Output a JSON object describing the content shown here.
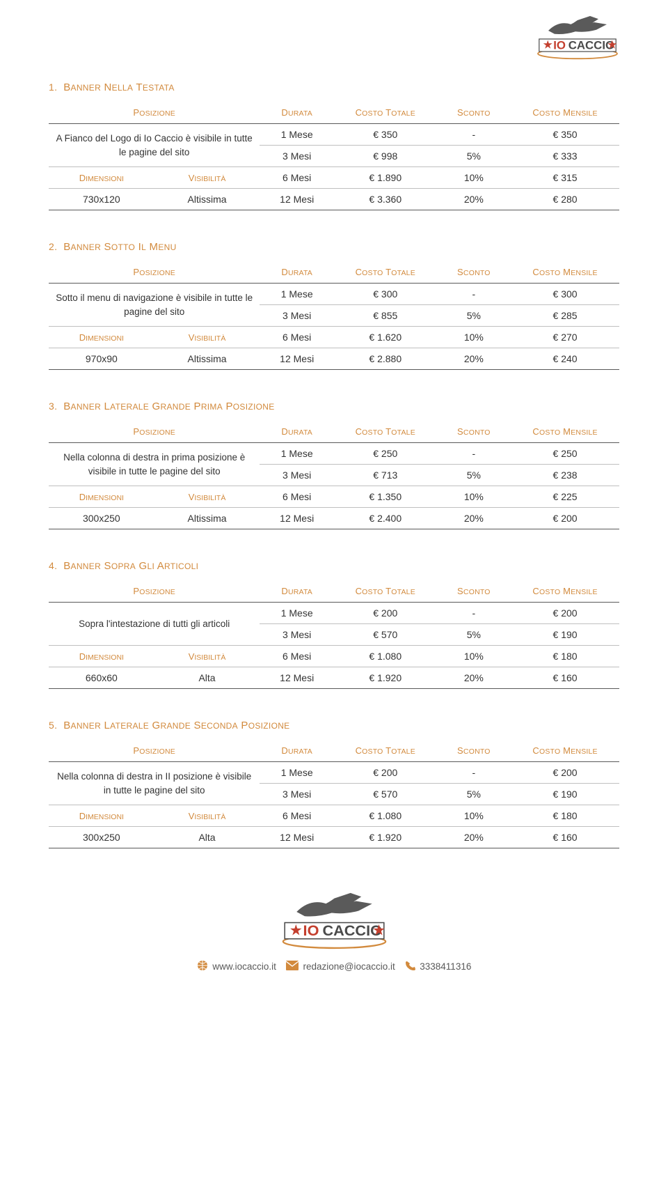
{
  "brand": {
    "name_a": "IO",
    "name_b": "CACCIO",
    "color_a": "#c43f2e",
    "color_b": "#4a4a4a",
    "accent": "#d28a3d",
    "star_color": "#c43f2e",
    "silhouette": "#5a5a5a"
  },
  "columns": {
    "posizione": "POSIZIONE",
    "durata": "DURATA",
    "costo_totale": "COSTO TOTALE",
    "sconto": "SCONTO",
    "costo_mensile": "COSTO MENSILE",
    "dimensioni": "DIMENSIONI",
    "visibilita": "VISIBILITÀ"
  },
  "sections": [
    {
      "num": "1.",
      "title": "BANNER NELLA TESTATA",
      "description": "A Fianco del Logo di Io Caccio è visibile in tutte le pagine del sito",
      "dimensioni": "730x120",
      "visibilita": "Altissima",
      "rows": [
        {
          "durata": "1 Mese",
          "totale": "€ 350",
          "sconto": "-",
          "mensile": "€ 350"
        },
        {
          "durata": "3 Mesi",
          "totale": "€ 998",
          "sconto": "5%",
          "mensile": "€ 333"
        },
        {
          "durata": "6 Mesi",
          "totale": "€ 1.890",
          "sconto": "10%",
          "mensile": "€ 315"
        },
        {
          "durata": "12 Mesi",
          "totale": "€ 3.360",
          "sconto": "20%",
          "mensile": "€ 280"
        }
      ]
    },
    {
      "num": "2.",
      "title": "BANNER SOTTO IL MENU",
      "description": "Sotto il menu di navigazione è visibile in tutte le pagine del sito",
      "dimensioni": "970x90",
      "visibilita": "Altissima",
      "rows": [
        {
          "durata": "1 Mese",
          "totale": "€ 300",
          "sconto": "-",
          "mensile": "€ 300"
        },
        {
          "durata": "3 Mesi",
          "totale": "€ 855",
          "sconto": "5%",
          "mensile": "€ 285"
        },
        {
          "durata": "6 Mesi",
          "totale": "€ 1.620",
          "sconto": "10%",
          "mensile": "€ 270"
        },
        {
          "durata": "12 Mesi",
          "totale": "€ 2.880",
          "sconto": "20%",
          "mensile": "€ 240"
        }
      ]
    },
    {
      "num": "3.",
      "title": "BANNER LATERALE GRANDE PRIMA POSIZIONE",
      "description": "Nella colonna di destra in prima posizione è visibile in tutte le pagine del sito",
      "dimensioni": "300x250",
      "visibilita": "Altissima",
      "rows": [
        {
          "durata": "1 Mese",
          "totale": "€ 250",
          "sconto": "-",
          "mensile": "€ 250"
        },
        {
          "durata": "3 Mesi",
          "totale": "€ 713",
          "sconto": "5%",
          "mensile": "€ 238"
        },
        {
          "durata": "6 Mesi",
          "totale": "€ 1.350",
          "sconto": "10%",
          "mensile": "€ 225"
        },
        {
          "durata": "12 Mesi",
          "totale": "€ 2.400",
          "sconto": "20%",
          "mensile": "€ 200"
        }
      ]
    },
    {
      "num": "4.",
      "title": "BANNER SOPRA GLI ARTICOLI",
      "description": "Sopra l'intestazione di tutti gli articoli",
      "dimensioni": "660x60",
      "visibilita": "Alta",
      "rows": [
        {
          "durata": "1 Mese",
          "totale": "€ 200",
          "sconto": "-",
          "mensile": "€ 200"
        },
        {
          "durata": "3 Mesi",
          "totale": "€ 570",
          "sconto": "5%",
          "mensile": "€ 190"
        },
        {
          "durata": "6 Mesi",
          "totale": "€ 1.080",
          "sconto": "10%",
          "mensile": "€ 180"
        },
        {
          "durata": "12 Mesi",
          "totale": "€ 1.920",
          "sconto": "20%",
          "mensile": "€ 160"
        }
      ]
    },
    {
      "num": "5.",
      "title": "BANNER LATERALE GRANDE SECONDA POSIZIONE",
      "description": "Nella colonna di destra in II posizione è visibile in tutte le pagine del sito",
      "dimensioni": "300x250",
      "visibilita": "Alta",
      "rows": [
        {
          "durata": "1 Mese",
          "totale": "€ 200",
          "sconto": "-",
          "mensile": "€ 200"
        },
        {
          "durata": "3 Mesi",
          "totale": "€ 570",
          "sconto": "5%",
          "mensile": "€ 190"
        },
        {
          "durata": "6 Mesi",
          "totale": "€ 1.080",
          "sconto": "10%",
          "mensile": "€ 180"
        },
        {
          "durata": "12 Mesi",
          "totale": "€ 1.920",
          "sconto": "20%",
          "mensile": "€ 160"
        }
      ]
    }
  ],
  "footer": {
    "website": "www.iocaccio.it",
    "email": "redazione@iocaccio.it",
    "phone": "3338411316",
    "icon_color": "#d28a3d"
  },
  "style": {
    "heading_color": "#d28a3d",
    "rule_color": "#595959",
    "row_rule_color": "#bfbfbf",
    "text_color": "#333333"
  }
}
